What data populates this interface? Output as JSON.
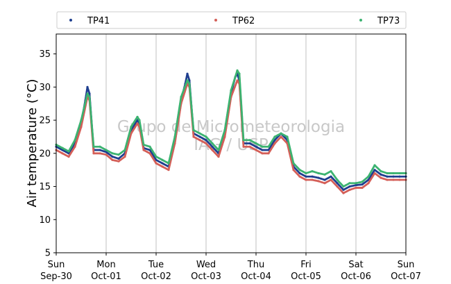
{
  "chart_data": {
    "type": "scatter",
    "ylabel": "Air temperature (°C)",
    "ylim": [
      5,
      38
    ],
    "yticks": [
      5,
      10,
      15,
      20,
      25,
      30,
      35
    ],
    "xlim": [
      "2018-09-30",
      "2018-10-07"
    ],
    "xticks": [
      {
        "date": "2018-09-30",
        "day": "Sun",
        "label": "Sep-30"
      },
      {
        "date": "2018-10-01",
        "day": "Mon",
        "label": "Oct-01"
      },
      {
        "date": "2018-10-02",
        "day": "Tue",
        "label": "Oct-02"
      },
      {
        "date": "2018-10-03",
        "day": "Wed",
        "label": "Oct-03"
      },
      {
        "date": "2018-10-04",
        "day": "Thu",
        "label": "Oct-04"
      },
      {
        "date": "2018-10-05",
        "day": "Fri",
        "label": "Oct-05"
      },
      {
        "date": "2018-10-06",
        "day": "Sat",
        "label": "Oct-06"
      },
      {
        "date": "2018-10-07",
        "day": "Sun",
        "label": "Oct-07"
      }
    ],
    "grid": "x-only",
    "legend_position": "top",
    "watermark": [
      "Grupo de Micrometeorologia",
      "IAG / USP"
    ],
    "series": [
      {
        "name": "TP41",
        "color": "#1f3f8f",
        "x": [
          "2018-09-30 00:00",
          "2018-09-30 03:00",
          "2018-09-30 06:00",
          "2018-09-30 09:00",
          "2018-09-30 12:00",
          "2018-09-30 14:00",
          "2018-09-30 15:00",
          "2018-09-30 16:00",
          "2018-09-30 18:00",
          "2018-09-30 21:00",
          "2018-10-01 00:00",
          "2018-10-01 03:00",
          "2018-10-01 06:00",
          "2018-10-01 09:00",
          "2018-10-01 12:00",
          "2018-10-01 15:00",
          "2018-10-01 16:00",
          "2018-10-01 18:00",
          "2018-10-01 21:00",
          "2018-10-02 00:00",
          "2018-10-02 03:00",
          "2018-10-02 06:00",
          "2018-10-02 09:00",
          "2018-10-02 12:00",
          "2018-10-02 14:00",
          "2018-10-02 15:00",
          "2018-10-02 16:00",
          "2018-10-02 18:00",
          "2018-10-02 21:00",
          "2018-10-03 00:00",
          "2018-10-03 03:00",
          "2018-10-03 06:00",
          "2018-10-03 09:00",
          "2018-10-03 12:00",
          "2018-10-03 14:00",
          "2018-10-03 15:00",
          "2018-10-03 16:00",
          "2018-10-03 18:00",
          "2018-10-03 21:00",
          "2018-10-04 00:00",
          "2018-10-04 03:00",
          "2018-10-04 06:00",
          "2018-10-04 09:00",
          "2018-10-04 12:00",
          "2018-10-04 15:00",
          "2018-10-04 18:00",
          "2018-10-04 21:00",
          "2018-10-05 00:00",
          "2018-10-05 03:00",
          "2018-10-05 06:00",
          "2018-10-05 09:00",
          "2018-10-05 12:00",
          "2018-10-05 15:00",
          "2018-10-05 18:00",
          "2018-10-05 21:00",
          "2018-10-06 00:00",
          "2018-10-06 03:00",
          "2018-10-06 06:00",
          "2018-10-06 09:00",
          "2018-10-06 12:00",
          "2018-10-06 15:00",
          "2018-10-06 18:00",
          "2018-10-06 21:00",
          "2018-10-07 00:00"
        ],
        "y": [
          21.0,
          20.5,
          20.0,
          21.5,
          24.5,
          28.0,
          30.0,
          29.0,
          20.5,
          20.5,
          20.2,
          19.5,
          19.2,
          20.0,
          23.5,
          25.0,
          24.5,
          20.8,
          20.5,
          19.0,
          18.5,
          18.0,
          22.0,
          28.0,
          30.5,
          32.0,
          31.0,
          23.0,
          22.5,
          22.0,
          21.0,
          20.0,
          23.0,
          29.0,
          31.5,
          32.0,
          31.0,
          21.5,
          21.5,
          21.0,
          20.5,
          20.5,
          22.0,
          23.0,
          22.0,
          18.0,
          17.0,
          16.5,
          16.5,
          16.3,
          16.0,
          16.5,
          15.5,
          14.5,
          15.0,
          15.2,
          15.3,
          16.0,
          17.5,
          16.8,
          16.5,
          16.5,
          16.5,
          16.5
        ]
      },
      {
        "name": "TP62",
        "color": "#d45f58",
        "x": [
          "2018-09-30 00:00",
          "2018-09-30 03:00",
          "2018-09-30 06:00",
          "2018-09-30 09:00",
          "2018-09-30 12:00",
          "2018-09-30 15:00",
          "2018-09-30 16:00",
          "2018-09-30 18:00",
          "2018-09-30 21:00",
          "2018-10-01 00:00",
          "2018-10-01 03:00",
          "2018-10-01 06:00",
          "2018-10-01 09:00",
          "2018-10-01 12:00",
          "2018-10-01 15:00",
          "2018-10-01 16:00",
          "2018-10-01 18:00",
          "2018-10-01 21:00",
          "2018-10-02 00:00",
          "2018-10-02 03:00",
          "2018-10-02 06:00",
          "2018-10-02 09:00",
          "2018-10-02 12:00",
          "2018-10-02 15:00",
          "2018-10-02 16:00",
          "2018-10-02 18:00",
          "2018-10-02 21:00",
          "2018-10-03 00:00",
          "2018-10-03 03:00",
          "2018-10-03 06:00",
          "2018-10-03 09:00",
          "2018-10-03 12:00",
          "2018-10-03 15:00",
          "2018-10-03 16:00",
          "2018-10-03 18:00",
          "2018-10-03 21:00",
          "2018-10-04 00:00",
          "2018-10-04 03:00",
          "2018-10-04 06:00",
          "2018-10-04 09:00",
          "2018-10-04 12:00",
          "2018-10-04 15:00",
          "2018-10-04 18:00",
          "2018-10-04 21:00",
          "2018-10-05 00:00",
          "2018-10-05 03:00",
          "2018-10-05 06:00",
          "2018-10-05 09:00",
          "2018-10-05 12:00",
          "2018-10-05 15:00",
          "2018-10-05 18:00",
          "2018-10-05 21:00",
          "2018-10-06 00:00",
          "2018-10-06 03:00",
          "2018-10-06 06:00",
          "2018-10-06 09:00",
          "2018-10-06 12:00",
          "2018-10-06 15:00",
          "2018-10-06 18:00",
          "2018-10-06 21:00",
          "2018-10-07 00:00"
        ],
        "y": [
          20.5,
          20.0,
          19.5,
          21.0,
          24.0,
          28.5,
          28.0,
          20.0,
          20.0,
          19.8,
          19.0,
          18.8,
          19.5,
          23.0,
          24.5,
          24.0,
          20.5,
          20.0,
          18.5,
          18.0,
          17.5,
          21.5,
          27.5,
          30.5,
          30.0,
          22.5,
          22.0,
          21.5,
          20.5,
          19.5,
          22.5,
          28.5,
          31.0,
          30.5,
          21.0,
          21.0,
          20.5,
          20.0,
          20.0,
          21.5,
          22.5,
          21.5,
          17.5,
          16.5,
          16.0,
          16.0,
          15.8,
          15.5,
          16.0,
          15.0,
          14.0,
          14.5,
          14.8,
          14.8,
          15.5,
          17.0,
          16.3,
          16.0,
          16.0,
          16.0,
          16.0
        ]
      },
      {
        "name": "TP73",
        "color": "#3cb371",
        "x": [
          "2018-09-30 00:00",
          "2018-09-30 03:00",
          "2018-09-30 06:00",
          "2018-09-30 09:00",
          "2018-09-30 12:00",
          "2018-09-30 15:00",
          "2018-09-30 16:00",
          "2018-09-30 18:00",
          "2018-09-30 21:00",
          "2018-10-01 00:00",
          "2018-10-01 03:00",
          "2018-10-01 06:00",
          "2018-10-01 09:00",
          "2018-10-01 12:00",
          "2018-10-01 15:00",
          "2018-10-01 16:00",
          "2018-10-01 18:00",
          "2018-10-01 21:00",
          "2018-10-02 00:00",
          "2018-10-02 03:00",
          "2018-10-02 06:00",
          "2018-10-02 09:00",
          "2018-10-02 12:00",
          "2018-10-02 15:00",
          "2018-10-02 16:00",
          "2018-10-02 18:00",
          "2018-10-02 21:00",
          "2018-10-03 00:00",
          "2018-10-03 03:00",
          "2018-10-03 06:00",
          "2018-10-03 09:00",
          "2018-10-03 12:00",
          "2018-10-03 15:00",
          "2018-10-03 16:00",
          "2018-10-03 18:00",
          "2018-10-03 21:00",
          "2018-10-04 00:00",
          "2018-10-04 03:00",
          "2018-10-04 06:00",
          "2018-10-04 09:00",
          "2018-10-04 12:00",
          "2018-10-04 15:00",
          "2018-10-04 18:00",
          "2018-10-04 21:00",
          "2018-10-05 00:00",
          "2018-10-05 03:00",
          "2018-10-05 06:00",
          "2018-10-05 09:00",
          "2018-10-05 12:00",
          "2018-10-05 15:00",
          "2018-10-05 18:00",
          "2018-10-05 21:00",
          "2018-10-06 00:00",
          "2018-10-06 03:00",
          "2018-10-06 06:00",
          "2018-10-06 09:00",
          "2018-10-06 12:00",
          "2018-10-06 15:00",
          "2018-10-06 18:00",
          "2018-10-06 21:00",
          "2018-10-07 00:00"
        ],
        "y": [
          21.3,
          20.8,
          20.3,
          22.0,
          25.0,
          29.0,
          28.5,
          21.0,
          21.0,
          20.5,
          20.0,
          19.8,
          20.5,
          24.0,
          25.5,
          25.0,
          21.3,
          21.0,
          19.5,
          19.0,
          18.5,
          22.5,
          28.5,
          31.0,
          30.5,
          23.5,
          23.0,
          22.5,
          21.5,
          20.5,
          23.5,
          29.5,
          32.5,
          32.0,
          22.0,
          22.0,
          21.5,
          21.0,
          21.0,
          22.5,
          23.0,
          22.5,
          18.5,
          17.5,
          17.0,
          17.3,
          17.0,
          16.8,
          17.3,
          16.0,
          15.0,
          15.5,
          15.5,
          15.7,
          16.5,
          18.2,
          17.3,
          17.0,
          17.0,
          17.0,
          17.0
        ]
      }
    ]
  }
}
